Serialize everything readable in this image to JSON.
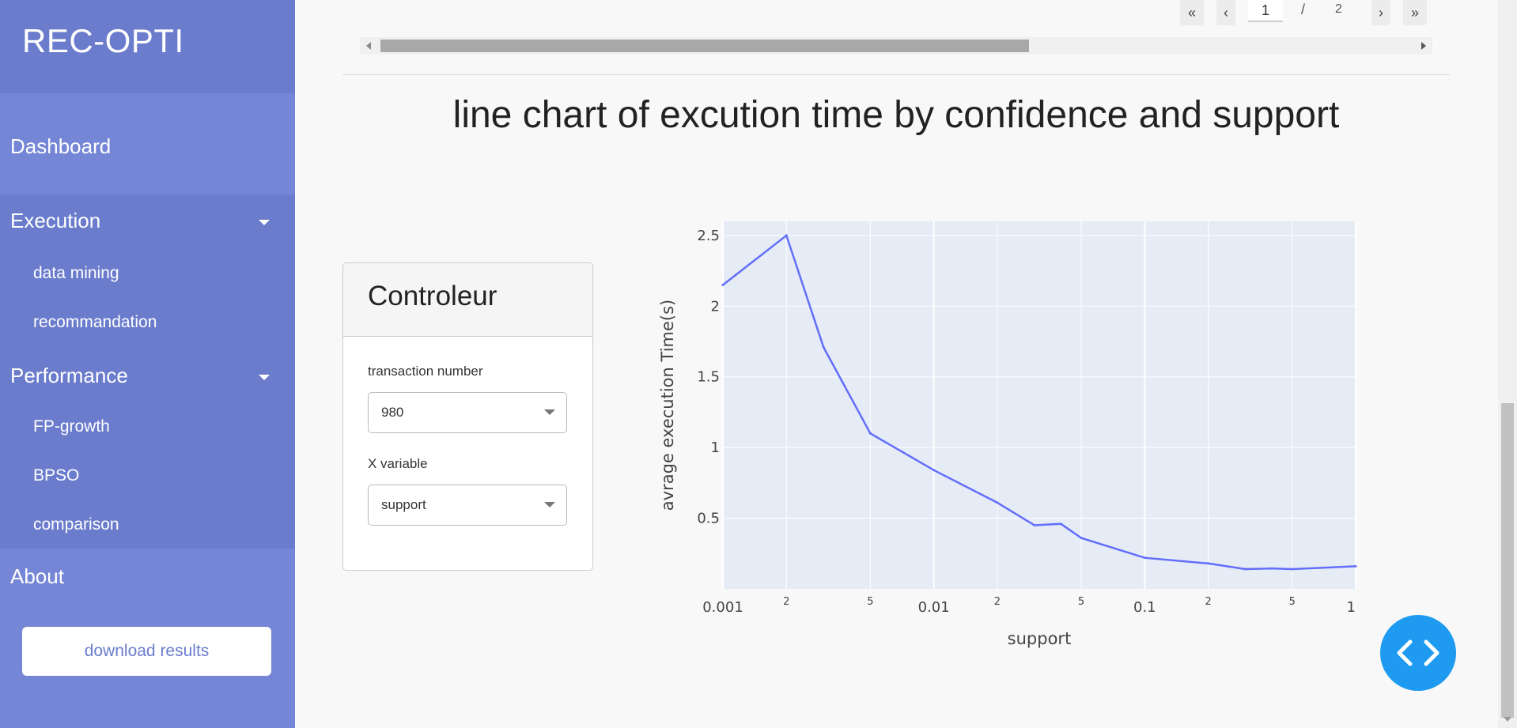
{
  "sidebar": {
    "brand": "REC-OPTI",
    "dashboard": "Dashboard",
    "execution": {
      "label": "Execution",
      "items": [
        "data mining",
        "recommandation"
      ]
    },
    "performance": {
      "label": "Performance",
      "items": [
        "FP-growth",
        "BPSO",
        "comparison"
      ]
    },
    "about": "About",
    "download_label": "download results"
  },
  "pager": {
    "first_icon": "double-chevron-left-icon",
    "prev_icon": "chevron-left-icon",
    "next_icon": "chevron-right-icon",
    "last_icon": "double-chevron-right-icon",
    "current_page": "1",
    "separator": "/",
    "total_pages": "2"
  },
  "main": {
    "title": "line chart of excution time by confidence and support"
  },
  "controller": {
    "title": "Controleur",
    "transaction_label": "transaction number",
    "transaction_value": "980",
    "xvar_label": "X variable",
    "xvar_value": "support"
  },
  "chart_data": {
    "type": "line",
    "xlabel": "support",
    "ylabel": "avrage execution Time(s)",
    "x_scale": "log",
    "xlim": [
      0.001,
      1
    ],
    "ylim": [
      0,
      2.6
    ],
    "x": [
      0.001,
      0.002,
      0.003,
      0.005,
      0.01,
      0.02,
      0.03,
      0.04,
      0.05,
      0.1,
      0.2,
      0.3,
      0.4,
      0.5,
      1
    ],
    "y": [
      2.15,
      2.5,
      1.71,
      1.1,
      0.84,
      0.61,
      0.45,
      0.46,
      0.36,
      0.22,
      0.18,
      0.14,
      0.145,
      0.14,
      0.16
    ],
    "y_ticks": [
      "0.5",
      "1",
      "1.5",
      "2",
      "2.5"
    ],
    "x_ticks_major": [
      "0.001",
      "0.01",
      "0.1",
      "1"
    ],
    "x_ticks_minor": [
      "2",
      "5",
      "2",
      "5",
      "2",
      "5"
    ],
    "line_color": "#636efa",
    "plot_bg": "#e5ecf6",
    "grid": true
  },
  "fab": {
    "icon": "code-brackets-icon"
  },
  "colors": {
    "sidebar": "#6b7ccc",
    "accent": "#1e9bf0"
  }
}
